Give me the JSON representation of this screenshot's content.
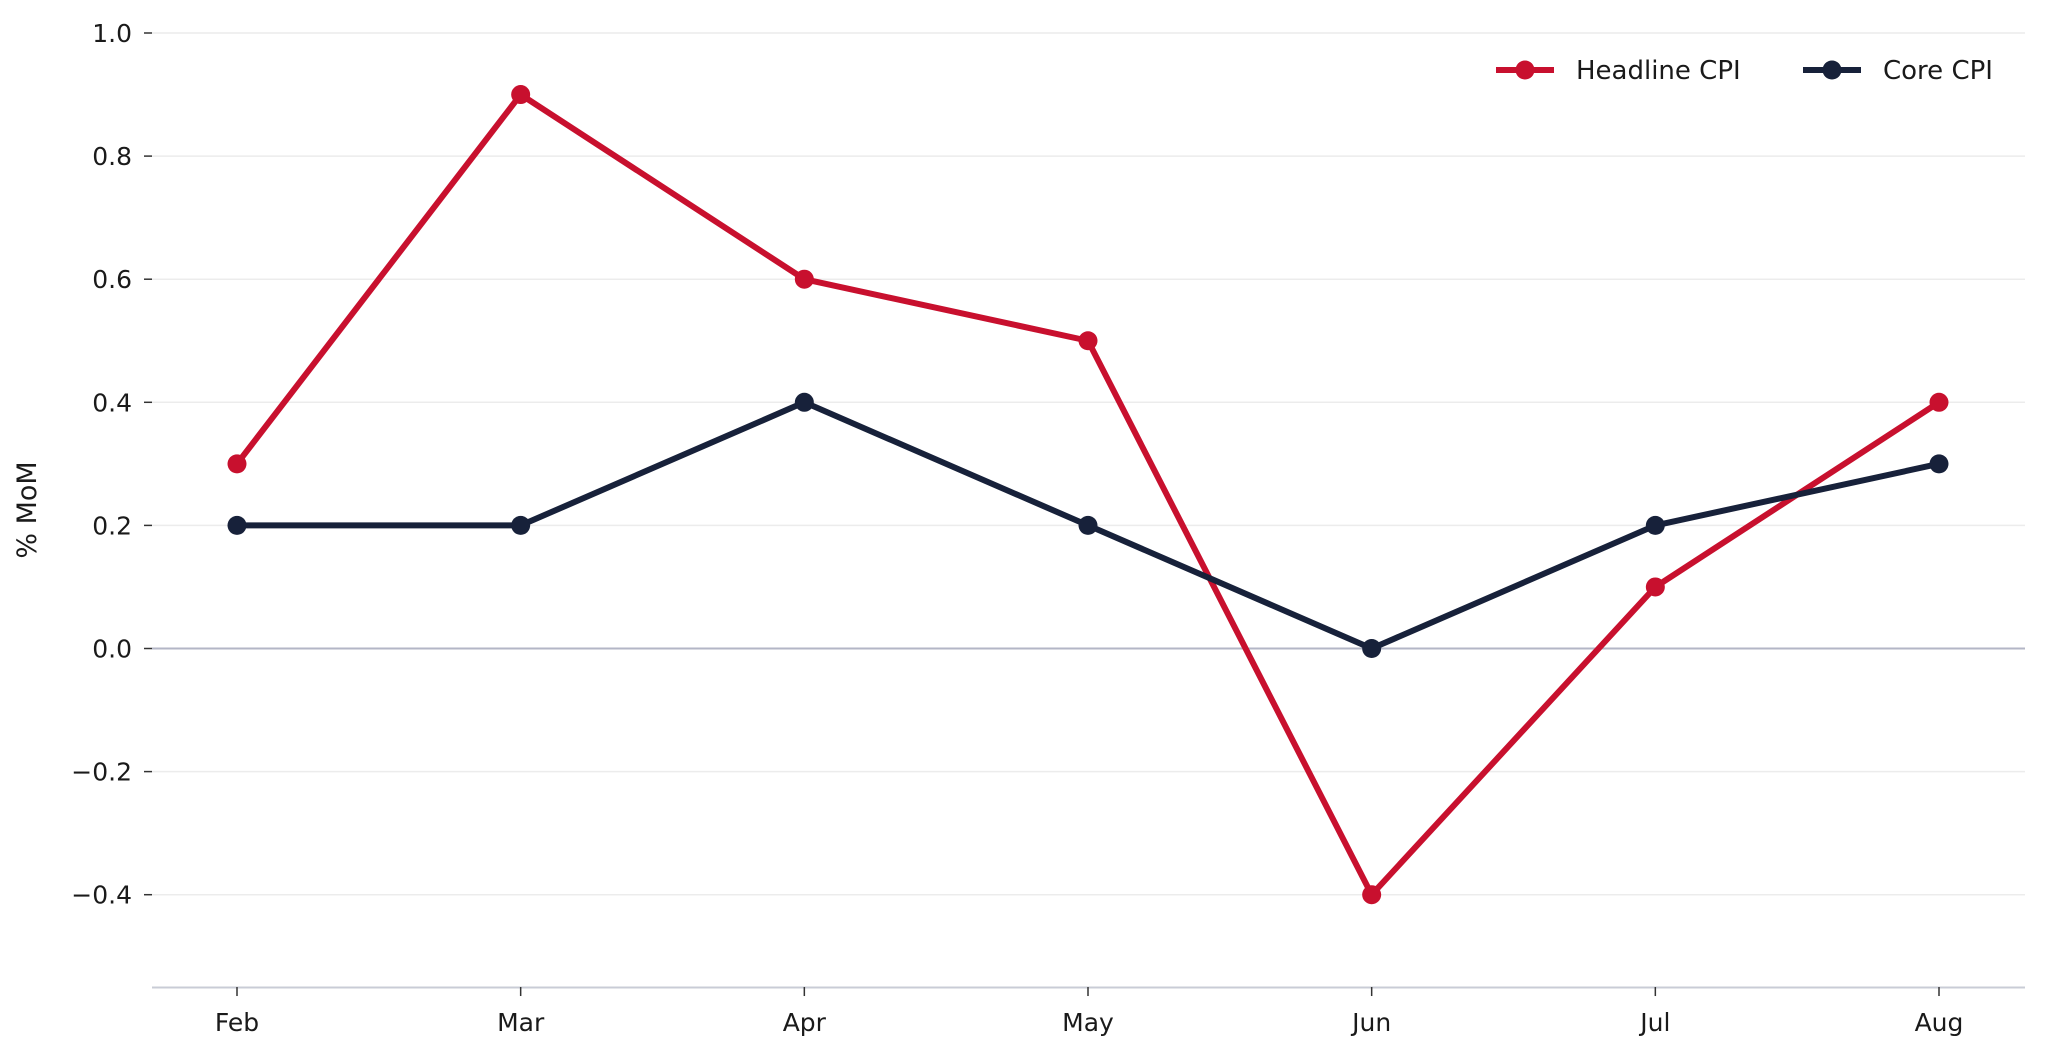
{
  "chart_data": {
    "type": "line",
    "title": "",
    "xlabel": "",
    "ylabel": "% MoM",
    "categories": [
      "Feb",
      "Mar",
      "Apr",
      "May",
      "Jun",
      "Jul",
      "Aug"
    ],
    "series": [
      {
        "name": "Headline CPI",
        "color": "#c8102e",
        "values": [
          0.3,
          0.9,
          0.6,
          0.5,
          -0.4,
          0.1,
          0.4
        ]
      },
      {
        "name": "Core CPI",
        "color": "#17213a",
        "values": [
          0.2,
          0.2,
          0.4,
          0.2,
          0.0,
          0.2,
          0.3
        ]
      }
    ],
    "ylim": [
      -0.55,
      1.0
    ],
    "yticks": [
      "1.0",
      "0.8",
      "0.6",
      "0.4",
      "0.2",
      "0.0",
      "−0.2",
      "−0.4"
    ],
    "ytick_values": [
      1.0,
      0.8,
      0.6,
      0.4,
      0.2,
      0.0,
      -0.2,
      -0.4
    ],
    "grid": "horizontal",
    "zero_line": true,
    "legend_position": "top-right"
  }
}
